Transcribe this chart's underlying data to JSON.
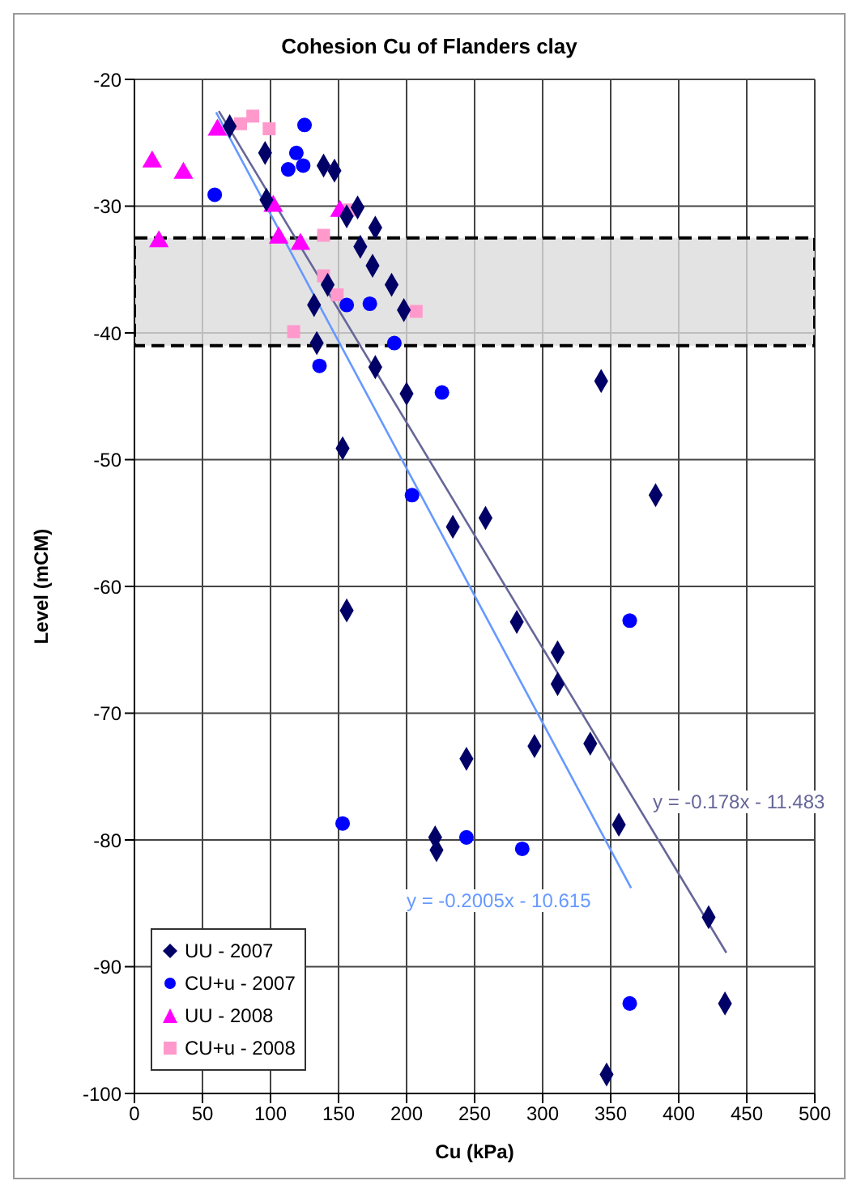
{
  "chart_data": {
    "type": "scatter",
    "title": "Cohesion Cu of Flanders clay",
    "xlabel": "Cu (kPa)",
    "ylabel": "Level (mCM)",
    "xlim": [
      0,
      500
    ],
    "xticks": [
      0,
      50,
      100,
      150,
      200,
      250,
      300,
      350,
      400,
      450,
      500
    ],
    "ylim": [
      -100,
      -20
    ],
    "yticks": [
      -100,
      -90,
      -80,
      -70,
      -60,
      -50,
      -40,
      -30,
      -20
    ],
    "grid": true,
    "legend": "bottom left",
    "bands": [
      {
        "axis": "y",
        "from": -41,
        "to": -32.5,
        "color": "#dcdcdc"
      }
    ],
    "annotations": [
      "y = -0.178x - 11.483",
      "y = -0.2005x - 10.615"
    ],
    "series": [
      {
        "name": "UU - 2007",
        "marker": "diamond",
        "color": "#000066",
        "x": [
          70,
          96,
          139,
          147,
          97,
          164,
          156,
          177,
          166,
          175,
          189,
          142,
          132,
          198,
          134,
          177,
          200,
          153,
          343,
          383,
          234,
          258,
          156,
          281,
          311,
          311,
          294,
          335,
          244,
          356,
          221,
          222,
          422,
          434,
          347
        ],
        "values": [
          -23.7,
          -25.8,
          -26.8,
          -27.2,
          -29.5,
          -30.1,
          -30.8,
          -31.7,
          -33.2,
          -34.7,
          -36.2,
          -36.2,
          -37.8,
          -38.2,
          -40.8,
          -42.7,
          -44.8,
          -49.1,
          -43.8,
          -52.8,
          -55.3,
          -54.6,
          -61.9,
          -62.8,
          -65.2,
          -67.7,
          -72.6,
          -72.4,
          -73.6,
          -78.8,
          -79.8,
          -80.8,
          -86.1,
          -92.9,
          -98.5
        ]
      },
      {
        "name": "CU+u - 2007",
        "marker": "circle",
        "color": "#0000ff",
        "x": [
          125,
          119,
          124,
          113,
          59,
          156,
          173,
          191,
          136,
          226,
          204,
          153,
          244,
          285,
          364,
          364
        ],
        "values": [
          -23.6,
          -25.8,
          -26.8,
          -27.1,
          -29.1,
          -37.8,
          -37.7,
          -40.8,
          -42.6,
          -44.7,
          -52.8,
          -78.7,
          -79.8,
          -80.7,
          -62.7,
          -92.9
        ]
      },
      {
        "name": "UU - 2008",
        "marker": "triangle",
        "color": "#ff00ff",
        "x": [
          13,
          36,
          61,
          102,
          151,
          18,
          106,
          122
        ],
        "values": [
          -26.5,
          -27.4,
          -24.0,
          -30.0,
          -30.4,
          -32.8,
          -32.5,
          -33.0
        ]
      },
      {
        "name": "CU+u - 2008",
        "marker": "square",
        "color": "#ff99cc",
        "x": [
          78,
          87,
          99,
          158,
          139,
          139,
          149,
          207,
          117
        ],
        "values": [
          -23.5,
          -22.9,
          -23.9,
          -30.3,
          -32.3,
          -35.5,
          -37.0,
          -38.3,
          -39.9
        ]
      },
      {
        "type": "line",
        "marker": "none",
        "color": "#666699",
        "x": [
          62,
          435
        ],
        "values": [
          -22.5,
          -88.9
        ]
      },
      {
        "type": "line",
        "marker": "none",
        "color": "#6699ff",
        "x": [
          60,
          365
        ],
        "values": [
          -22.6,
          -83.8
        ]
      }
    ]
  }
}
